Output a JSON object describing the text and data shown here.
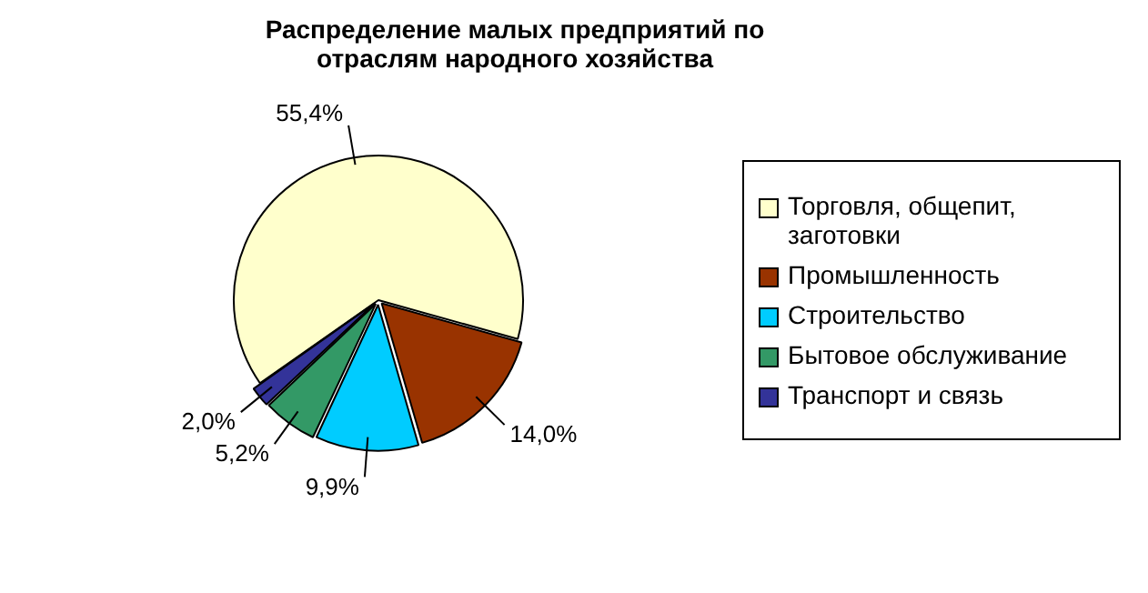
{
  "chart_data": {
    "type": "pie",
    "title": "Распределение малых предприятий по отраслям народного хозяйства",
    "categories": [
      "Торговля, общепит, заготовки",
      "Промышленность",
      "Строительство",
      "Бытовое обслуживание",
      "Транспорт и связь"
    ],
    "values": [
      55.4,
      14.0,
      9.9,
      5.2,
      2.0
    ],
    "value_labels": [
      "55,4%",
      "14,0%",
      "9,9%",
      "5,2%",
      "2,0%"
    ],
    "colors": [
      "#ffffcc",
      "#993300",
      "#00ccff",
      "#339966",
      "#333399"
    ],
    "legend": "right"
  }
}
